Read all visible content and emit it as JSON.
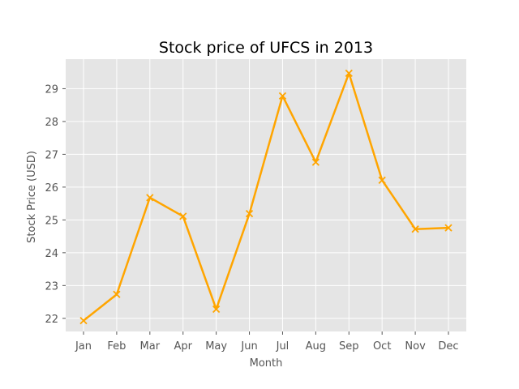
{
  "chart_data": {
    "type": "line",
    "title": "Stock price of UFCS in 2013",
    "xlabel": "Month",
    "ylabel": "Stock Price (USD)",
    "categories": [
      "Jan",
      "Feb",
      "Mar",
      "Apr",
      "May",
      "Jun",
      "Jul",
      "Aug",
      "Sep",
      "Oct",
      "Nov",
      "Dec"
    ],
    "series": [
      {
        "values": [
          21.93,
          22.73,
          25.68,
          25.11,
          22.28,
          25.19,
          28.78,
          26.76,
          29.47,
          26.21,
          24.72,
          24.76
        ]
      }
    ],
    "ylim": [
      21.6,
      29.9
    ],
    "yticks": [
      22,
      23,
      24,
      25,
      26,
      27,
      28,
      29
    ],
    "grid": true,
    "legend": "none",
    "marker": "x",
    "colors": {
      "line": "#ffa500",
      "plot_background": "#e5e5e5",
      "grid": "#ffffff",
      "tick_text": "#555555"
    }
  }
}
